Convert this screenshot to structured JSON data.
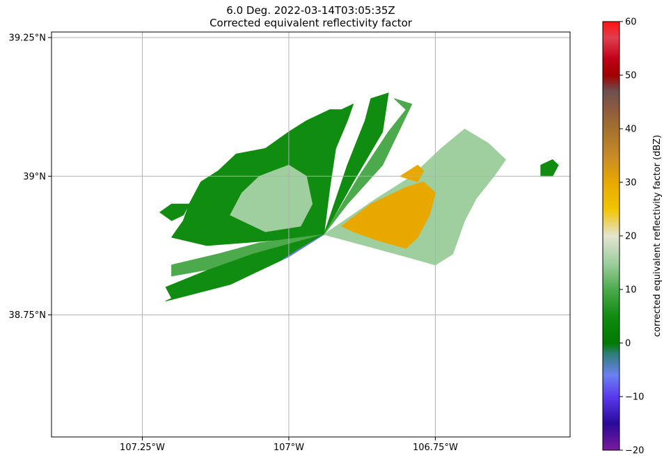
{
  "chart_data": {
    "type": "heatmap",
    "title": "6.0 Deg. 2022-03-14T03:05:35Z",
    "subtitle": "Corrected equivalent reflectivity factor",
    "x_axis": {
      "unit": "deg longitude",
      "range": [
        -107.405,
        -106.52
      ],
      "ticks": [
        {
          "value": -107.25,
          "label": "107.25°W"
        },
        {
          "value": -107.0,
          "label": "107°W"
        },
        {
          "value": -106.75,
          "label": "106.75°W"
        }
      ]
    },
    "y_axis": {
      "unit": "deg latitude",
      "range": [
        38.53,
        39.26
      ],
      "ticks": [
        {
          "value": 39.25,
          "label": "39.25°N"
        },
        {
          "value": 39.0,
          "label": "39°N"
        },
        {
          "value": 38.75,
          "label": "38.75°N"
        }
      ]
    },
    "grid": true,
    "radar_site": {
      "lon": -106.94,
      "lat": 38.895
    },
    "colorbar": {
      "label": "corrected equivalent reflectivity factor (dBZ)",
      "range": [
        -20,
        60
      ],
      "ticks": [
        -20,
        -10,
        0,
        10,
        20,
        30,
        40,
        50,
        60
      ],
      "tick_labels": [
        "−20",
        "−10",
        "0",
        "10",
        "20",
        "30",
        "40",
        "50",
        "60"
      ],
      "stops": [
        {
          "value": -20,
          "color": "#7a1a9c"
        },
        {
          "value": -15,
          "color": "#2a0a9a"
        },
        {
          "value": -10,
          "color": "#5a3aee"
        },
        {
          "value": -6,
          "color": "#6a80f0"
        },
        {
          "value": -2,
          "color": "#2e7e78"
        },
        {
          "value": 0,
          "color": "#007a00"
        },
        {
          "value": 5,
          "color": "#108c10"
        },
        {
          "value": 10,
          "color": "#4caa4c"
        },
        {
          "value": 15,
          "color": "#9fcf9f"
        },
        {
          "value": 20,
          "color": "#e4e4d0"
        },
        {
          "value": 25,
          "color": "#f2c400"
        },
        {
          "value": 30,
          "color": "#e8a800"
        },
        {
          "value": 35,
          "color": "#c88a28"
        },
        {
          "value": 40,
          "color": "#a4702c"
        },
        {
          "value": 44,
          "color": "#8a5a40"
        },
        {
          "value": 47,
          "color": "#6e5050"
        },
        {
          "value": 50,
          "color": "#a00000"
        },
        {
          "value": 53,
          "color": "#c00018"
        },
        {
          "value": 57,
          "color": "#e04050"
        },
        {
          "value": 60,
          "color": "#ff1010"
        }
      ]
    },
    "echo_regions": [
      {
        "name": "west-main-echo",
        "dbz": 5,
        "polygon": [
          [
            -107.2,
            38.89
          ],
          [
            -107.18,
            38.92
          ],
          [
            -107.17,
            38.95
          ],
          [
            -107.15,
            38.99
          ],
          [
            -107.12,
            39.01
          ],
          [
            -107.09,
            39.04
          ],
          [
            -107.04,
            39.05
          ],
          [
            -107.0,
            39.08
          ],
          [
            -106.97,
            39.1
          ],
          [
            -106.93,
            39.12
          ],
          [
            -106.91,
            39.12
          ],
          [
            -106.89,
            39.13
          ],
          [
            -106.9,
            39.1
          ],
          [
            -106.92,
            39.05
          ],
          [
            -106.93,
            38.98
          ],
          [
            -106.94,
            38.895
          ],
          [
            -106.97,
            38.89
          ],
          [
            -107.02,
            38.885
          ],
          [
            -107.08,
            38.88
          ],
          [
            -107.14,
            38.875
          ]
        ]
      },
      {
        "name": "west-light-core",
        "dbz": 15,
        "polygon": [
          [
            -107.1,
            38.93
          ],
          [
            -107.08,
            38.97
          ],
          [
            -107.05,
            39.0
          ],
          [
            -107.0,
            39.02
          ],
          [
            -106.97,
            39.0
          ],
          [
            -106.96,
            38.95
          ],
          [
            -106.98,
            38.91
          ],
          [
            -107.04,
            38.9
          ]
        ]
      },
      {
        "name": "nne-narrow-spoke",
        "dbz": 5,
        "polygon": [
          [
            -106.94,
            38.895
          ],
          [
            -106.9,
            39.02
          ],
          [
            -106.87,
            39.1
          ],
          [
            -106.86,
            39.14
          ],
          [
            -106.83,
            39.15
          ],
          [
            -106.84,
            39.08
          ],
          [
            -106.89,
            38.99
          ]
        ]
      },
      {
        "name": "northeast-spoke",
        "dbz": 8,
        "polygon": [
          [
            -106.94,
            38.895
          ],
          [
            -106.88,
            39.0
          ],
          [
            -106.83,
            39.08
          ],
          [
            -106.8,
            39.12
          ],
          [
            -106.82,
            39.14
          ],
          [
            -106.79,
            39.13
          ],
          [
            -106.84,
            39.02
          ],
          [
            -106.9,
            38.95
          ]
        ]
      },
      {
        "name": "east-wedge",
        "dbz": 12,
        "polygon": [
          [
            -106.94,
            38.895
          ],
          [
            -106.85,
            38.96
          ],
          [
            -106.79,
            39.0
          ],
          [
            -106.74,
            39.05
          ],
          [
            -106.7,
            39.085
          ],
          [
            -106.66,
            39.06
          ],
          [
            -106.63,
            39.03
          ],
          [
            -106.65,
            39.0
          ],
          [
            -106.68,
            38.96
          ],
          [
            -106.7,
            38.92
          ],
          [
            -106.72,
            38.86
          ],
          [
            -106.75,
            38.84
          ],
          [
            -106.8,
            38.855
          ],
          [
            -106.87,
            38.875
          ]
        ]
      },
      {
        "name": "east-moderate-core",
        "dbz": 27,
        "polygon": [
          [
            -106.91,
            38.91
          ],
          [
            -106.86,
            38.95
          ],
          [
            -106.8,
            38.98
          ],
          [
            -106.77,
            38.99
          ],
          [
            -106.75,
            38.97
          ],
          [
            -106.76,
            38.93
          ],
          [
            -106.78,
            38.89
          ],
          [
            -106.8,
            38.87
          ],
          [
            -106.85,
            38.885
          ],
          [
            -106.89,
            38.9
          ]
        ]
      },
      {
        "name": "east-moderate-north",
        "dbz": 27,
        "polygon": [
          [
            -106.81,
            39.0
          ],
          [
            -106.78,
            39.02
          ],
          [
            -106.77,
            39.01
          ],
          [
            -106.78,
            38.99
          ]
        ]
      },
      {
        "name": "southwest-spoke-1",
        "dbz": 6,
        "polygon": [
          [
            -106.94,
            38.895
          ],
          [
            -107.05,
            38.88
          ],
          [
            -107.12,
            38.86
          ],
          [
            -107.2,
            38.84
          ],
          [
            -107.2,
            38.82
          ],
          [
            -107.12,
            38.835
          ],
          [
            -107.03,
            38.86
          ]
        ]
      },
      {
        "name": "southwest-spoke-2",
        "dbz": 5,
        "polygon": [
          [
            -106.94,
            38.895
          ],
          [
            -107.06,
            38.86
          ],
          [
            -107.14,
            38.83
          ],
          [
            -107.21,
            38.8
          ],
          [
            -107.2,
            38.78
          ],
          [
            -107.1,
            38.82
          ],
          [
            -107.02,
            38.86
          ]
        ]
      },
      {
        "name": "southwest-spoke-3",
        "dbz": 4,
        "polygon": [
          [
            -106.94,
            38.895
          ],
          [
            -107.04,
            38.855
          ],
          [
            -107.12,
            38.82
          ],
          [
            -107.2,
            38.78
          ],
          [
            -107.21,
            38.775
          ],
          [
            -107.1,
            38.805
          ],
          [
            -107.0,
            38.855
          ]
        ]
      },
      {
        "name": "south-blue-spoke",
        "dbz": -8,
        "polygon": [
          [
            -106.94,
            38.895
          ],
          [
            -106.97,
            38.875
          ],
          [
            -107.0,
            38.855
          ],
          [
            -107.01,
            38.85
          ],
          [
            -106.98,
            38.87
          ]
        ]
      },
      {
        "name": "far-west-fragment",
        "dbz": 5,
        "polygon": [
          [
            -107.22,
            38.935
          ],
          [
            -107.2,
            38.95
          ],
          [
            -107.17,
            38.95
          ],
          [
            -107.18,
            38.93
          ],
          [
            -107.2,
            38.92
          ]
        ]
      },
      {
        "name": "far-east-blob",
        "dbz": 5,
        "polygon": [
          [
            -106.57,
            39.02
          ],
          [
            -106.55,
            39.03
          ],
          [
            -106.54,
            39.02
          ],
          [
            -106.55,
            39.0
          ],
          [
            -106.57,
            39.0
          ]
        ]
      }
    ]
  }
}
